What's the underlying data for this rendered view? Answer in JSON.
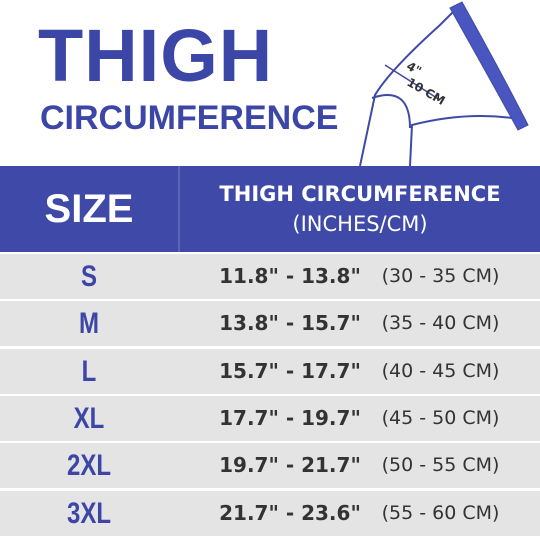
{
  "header": {
    "title": "THIGH",
    "subtitle": "CIRCUMFERENCE"
  },
  "illustration": {
    "inches": "4\"",
    "cm": "10 CM"
  },
  "table": {
    "columns": {
      "size": "SIZE",
      "measure": "THIGH CIRCUMFERENCE",
      "units": "(INCHES/CM)"
    },
    "rows": [
      [
        "S",
        "11.8\" - 13.8\"",
        "(30 - 35 CM)"
      ],
      [
        "M",
        "13.8\" - 15.7\"",
        "(35 - 40 CM)"
      ],
      [
        "L",
        "15.7\" - 17.7\"",
        "(40 - 45 CM)"
      ],
      [
        "XL",
        "17.7\" - 19.7\"",
        "(45 - 50 CM)"
      ],
      [
        "2XL",
        "19.7\" - 21.7\"",
        "(50 - 55 CM)"
      ],
      [
        "3XL",
        "21.7\" - 23.6\"",
        "(55 - 60 CM)"
      ]
    ]
  }
}
